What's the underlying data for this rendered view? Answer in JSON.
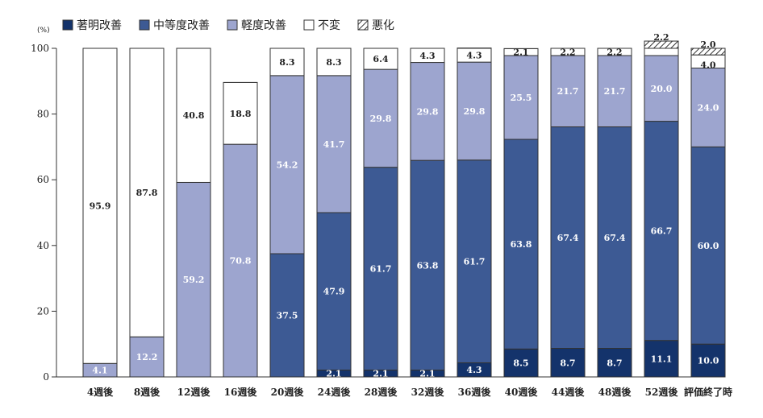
{
  "chart_data": {
    "type": "bar",
    "stacked": true,
    "unit_label": "(%)",
    "ylim": [
      0,
      100
    ],
    "yticks": [
      0,
      20,
      40,
      60,
      80,
      100
    ],
    "categories": [
      "4週後",
      "8週後",
      "12週後",
      "16週後",
      "20週後",
      "24週後",
      "28週後",
      "32週後",
      "36週後",
      "40週後",
      "44週後",
      "48週後",
      "52週後",
      "評価終了時"
    ],
    "series": [
      {
        "name": "著明改善",
        "color": "#14336b",
        "label_color": "#ffffff",
        "values": [
          0,
          0,
          0,
          0,
          0,
          2.1,
          2.1,
          2.1,
          4.3,
          8.5,
          8.7,
          8.7,
          11.1,
          10.0
        ],
        "labels": [
          "",
          "",
          "",
          "",
          "",
          "2.1",
          "2.1",
          "2.1",
          "4.3",
          "8.5",
          "8.7",
          "8.7",
          "11.1",
          "10.0"
        ]
      },
      {
        "name": "中等度改善",
        "color": "#3d5a94",
        "label_color": "#ffffff",
        "values": [
          0,
          0,
          0,
          0,
          37.5,
          47.9,
          61.7,
          63.8,
          61.7,
          63.8,
          67.4,
          67.4,
          66.7,
          60.0
        ],
        "labels": [
          "",
          "",
          "",
          "",
          "37.5",
          "47.9",
          "61.7",
          "63.8",
          "61.7",
          "63.8",
          "67.4",
          "67.4",
          "66.7",
          "60.0"
        ]
      },
      {
        "name": "軽度改善",
        "color": "#9da5cf",
        "label_color": "#ffffff",
        "values": [
          4.1,
          12.2,
          59.2,
          70.8,
          54.2,
          41.7,
          29.8,
          29.8,
          29.8,
          25.5,
          21.7,
          21.7,
          20.0,
          24.0
        ],
        "labels": [
          "4.1",
          "12.2",
          "59.2",
          "70.8",
          "54.2",
          "41.7",
          "29.8",
          "29.8",
          "29.8",
          "25.5",
          "21.7",
          "21.7",
          "20.0",
          "24.0"
        ]
      },
      {
        "name": "不変",
        "color": "#ffffff",
        "label_color": "#222222",
        "values": [
          95.9,
          87.8,
          40.8,
          18.8,
          8.3,
          8.3,
          6.4,
          4.3,
          4.3,
          2.1,
          2.2,
          2.2,
          2.2,
          4.0
        ],
        "labels": [
          "95.9",
          "87.8",
          "40.8",
          "18.8",
          "8.3",
          "8.3",
          "6.4",
          "4.3",
          "4.3",
          "2.1",
          "2.2",
          "2.2",
          "",
          "4.0"
        ]
      },
      {
        "name": "悪化",
        "color": "hatch",
        "label_color": "#222222",
        "values": [
          0,
          0,
          0,
          0,
          0,
          0,
          0,
          0,
          0,
          0,
          0,
          0,
          2.2,
          2.0
        ],
        "labels": [
          "",
          "",
          "",
          "",
          "",
          "",
          "",
          "",
          "",
          "",
          "",
          "",
          "2.2",
          "2.0"
        ]
      }
    ]
  }
}
